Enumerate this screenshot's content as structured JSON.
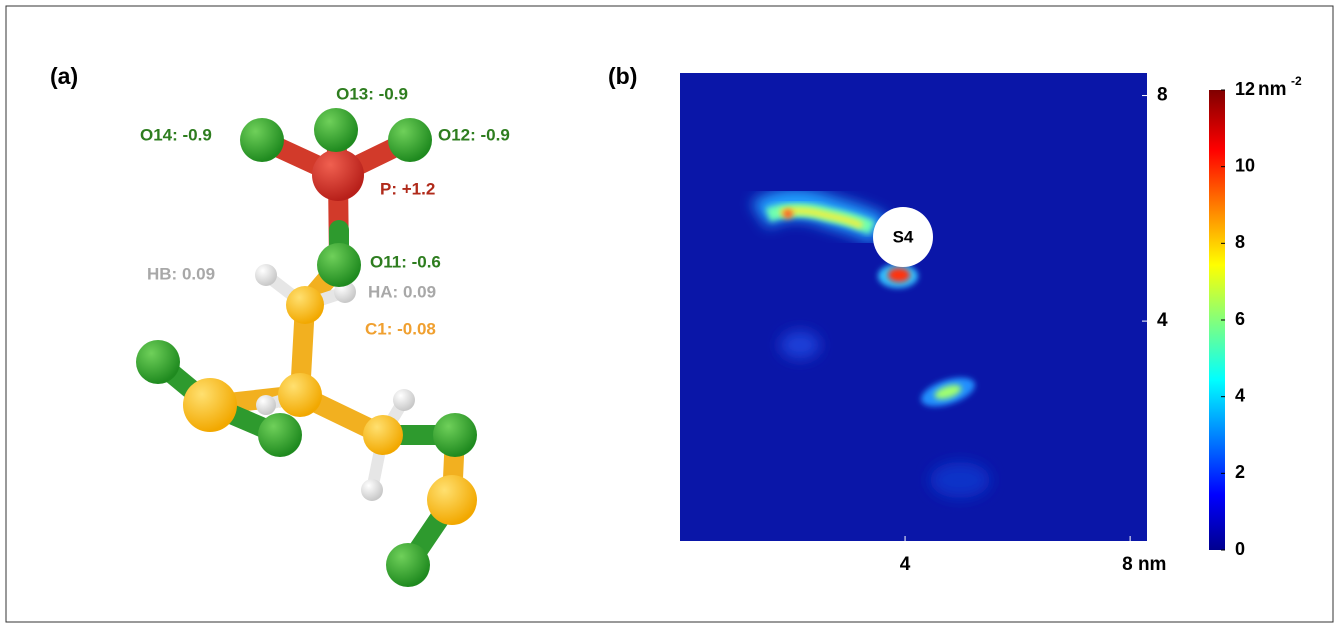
{
  "panel_a": {
    "label": "(a)",
    "atoms": [
      {
        "label": "O13: -0.9"
      },
      {
        "label": "O14: -0.9"
      },
      {
        "label": "O12: -0.9"
      },
      {
        "label": "P: +1.2"
      },
      {
        "label": "O11: -0.6"
      },
      {
        "label": "HB: 0.09"
      },
      {
        "label": "HA: 0.09"
      },
      {
        "label": "C1: -0.08"
      }
    ]
  },
  "panel_b": {
    "label": "(b)",
    "annotation": "S4",
    "xlim": [
      0,
      8.3
    ],
    "ylim": [
      0.1,
      8.4
    ],
    "xticks": [
      {
        "value": 4,
        "label": "4"
      },
      {
        "value": 8,
        "label": "8 nm"
      }
    ],
    "yticks": [
      4,
      8
    ],
    "colorbar": {
      "lim": [
        0,
        12
      ],
      "ticks": [
        0,
        2,
        4,
        6,
        8,
        10,
        12
      ],
      "unit": "nm",
      "unit_exponent": "-2"
    }
  }
}
